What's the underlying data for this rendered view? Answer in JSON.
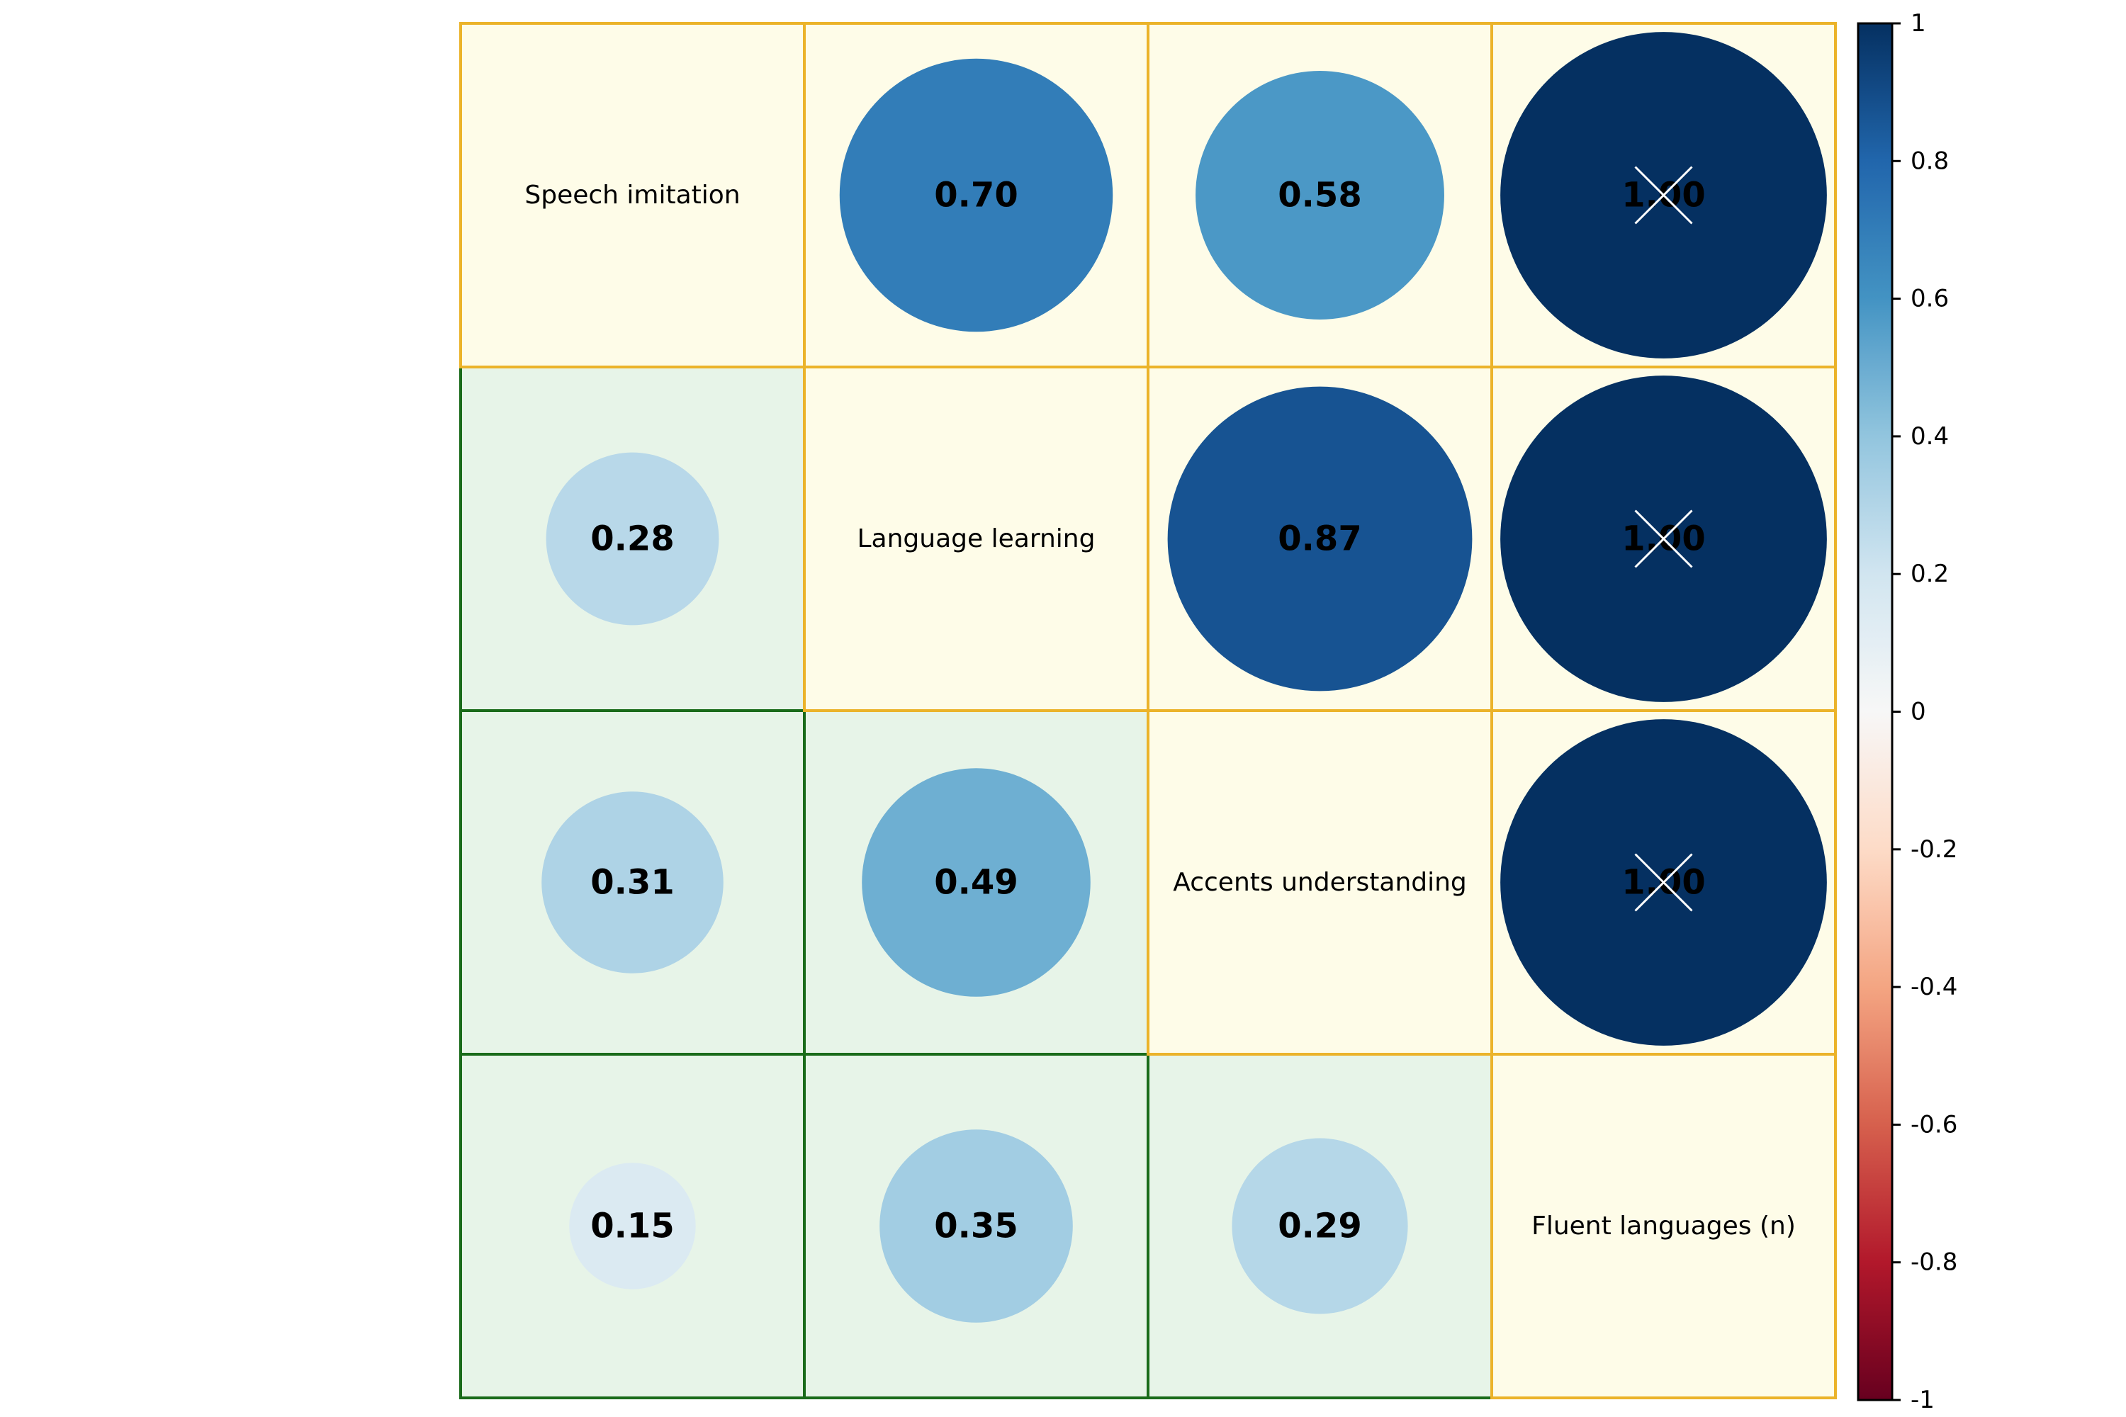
{
  "chart_data": {
    "type": "heatmap",
    "variables": [
      "Speech imitation",
      "Language learning",
      "Accents understanding",
      "Fluent languages (n)"
    ],
    "upper_triangle": [
      {
        "row": 0,
        "col": 1,
        "value": 0.7,
        "label": "0.70",
        "crossed": false
      },
      {
        "row": 0,
        "col": 2,
        "value": 0.58,
        "label": "0.58",
        "crossed": false
      },
      {
        "row": 0,
        "col": 3,
        "value": 1.0,
        "label": "1.00",
        "crossed": true
      },
      {
        "row": 1,
        "col": 2,
        "value": 0.87,
        "label": "0.87",
        "crossed": false
      },
      {
        "row": 1,
        "col": 3,
        "value": 1.0,
        "label": "1.00",
        "crossed": true
      },
      {
        "row": 2,
        "col": 3,
        "value": 1.0,
        "label": "1.00",
        "crossed": true
      }
    ],
    "lower_triangle": [
      {
        "row": 1,
        "col": 0,
        "value": 0.28,
        "label": "0.28"
      },
      {
        "row": 2,
        "col": 0,
        "value": 0.31,
        "label": "0.31"
      },
      {
        "row": 2,
        "col": 1,
        "value": 0.49,
        "label": "0.49"
      },
      {
        "row": 3,
        "col": 0,
        "value": 0.15,
        "label": "0.15"
      },
      {
        "row": 3,
        "col": 1,
        "value": 0.35,
        "label": "0.35"
      },
      {
        "row": 3,
        "col": 2,
        "value": 0.29,
        "label": "0.29"
      }
    ],
    "colorbar": {
      "range": [
        -1,
        1
      ],
      "ticks": [
        "1",
        "0.8",
        "0.6",
        "0.4",
        "0.2",
        "0",
        "-0.2",
        "-0.4",
        "-0.6",
        "-0.8",
        "-1"
      ],
      "colormap": "RdBu"
    },
    "colors": {
      "upper_cell_bg": "#fefce8",
      "upper_cell_border": "#ebb32a",
      "lower_cell_bg": "#e7f4e8",
      "lower_cell_border": "#1a6b1a",
      "cross_color": "#ffffff"
    },
    "grid": true,
    "legend_position": "right"
  }
}
